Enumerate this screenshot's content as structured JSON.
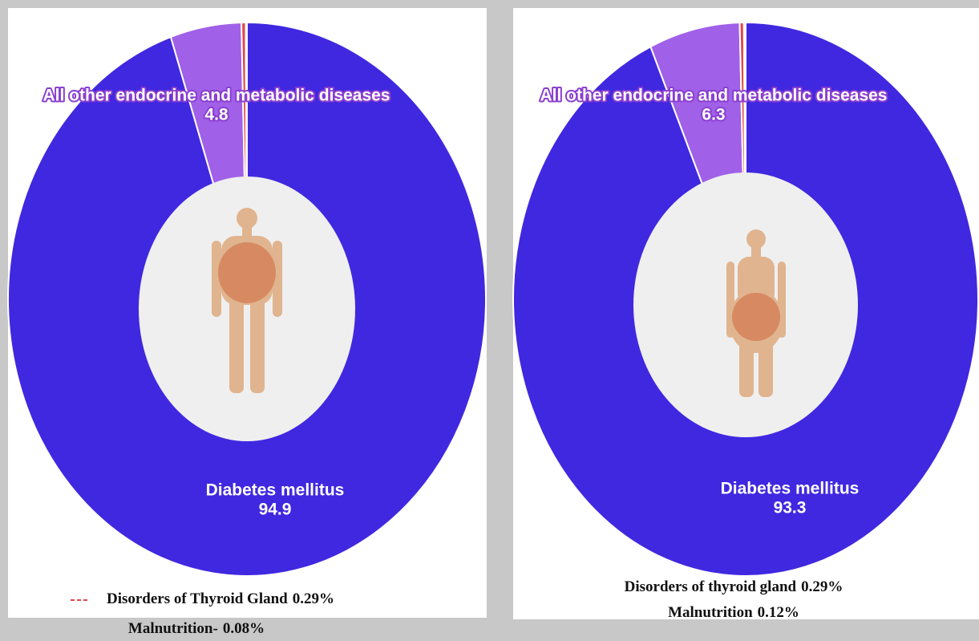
{
  "chart_data": [
    {
      "type": "pie",
      "categories": [
        "Diabetes mellitus",
        "All other endocrine and metabolic diseases",
        "Disorders of Thyroid Gland",
        "Malnutrition-"
      ],
      "values": [
        94.9,
        4.8,
        0.29,
        0.08
      ],
      "value_labels": [
        "94.9",
        "4.8",
        "0.29%",
        "0.08%"
      ],
      "colors": [
        "#4028e0",
        "#a060e8",
        "#e04848",
        "#f4a0a0"
      ]
    },
    {
      "type": "pie",
      "categories": [
        "Diabetes mellitus",
        "All other endocrine and metabolic diseases",
        "Disorders of thyroid gland",
        "Malnutrition"
      ],
      "values": [
        93.3,
        6.3,
        0.29,
        0.12
      ],
      "value_labels": [
        "93.3",
        "6.3",
        "0.29%",
        "0.12%"
      ],
      "colors": [
        "#4028e0",
        "#a060e8",
        "#e04848",
        "#f4a0a0"
      ]
    }
  ]
}
